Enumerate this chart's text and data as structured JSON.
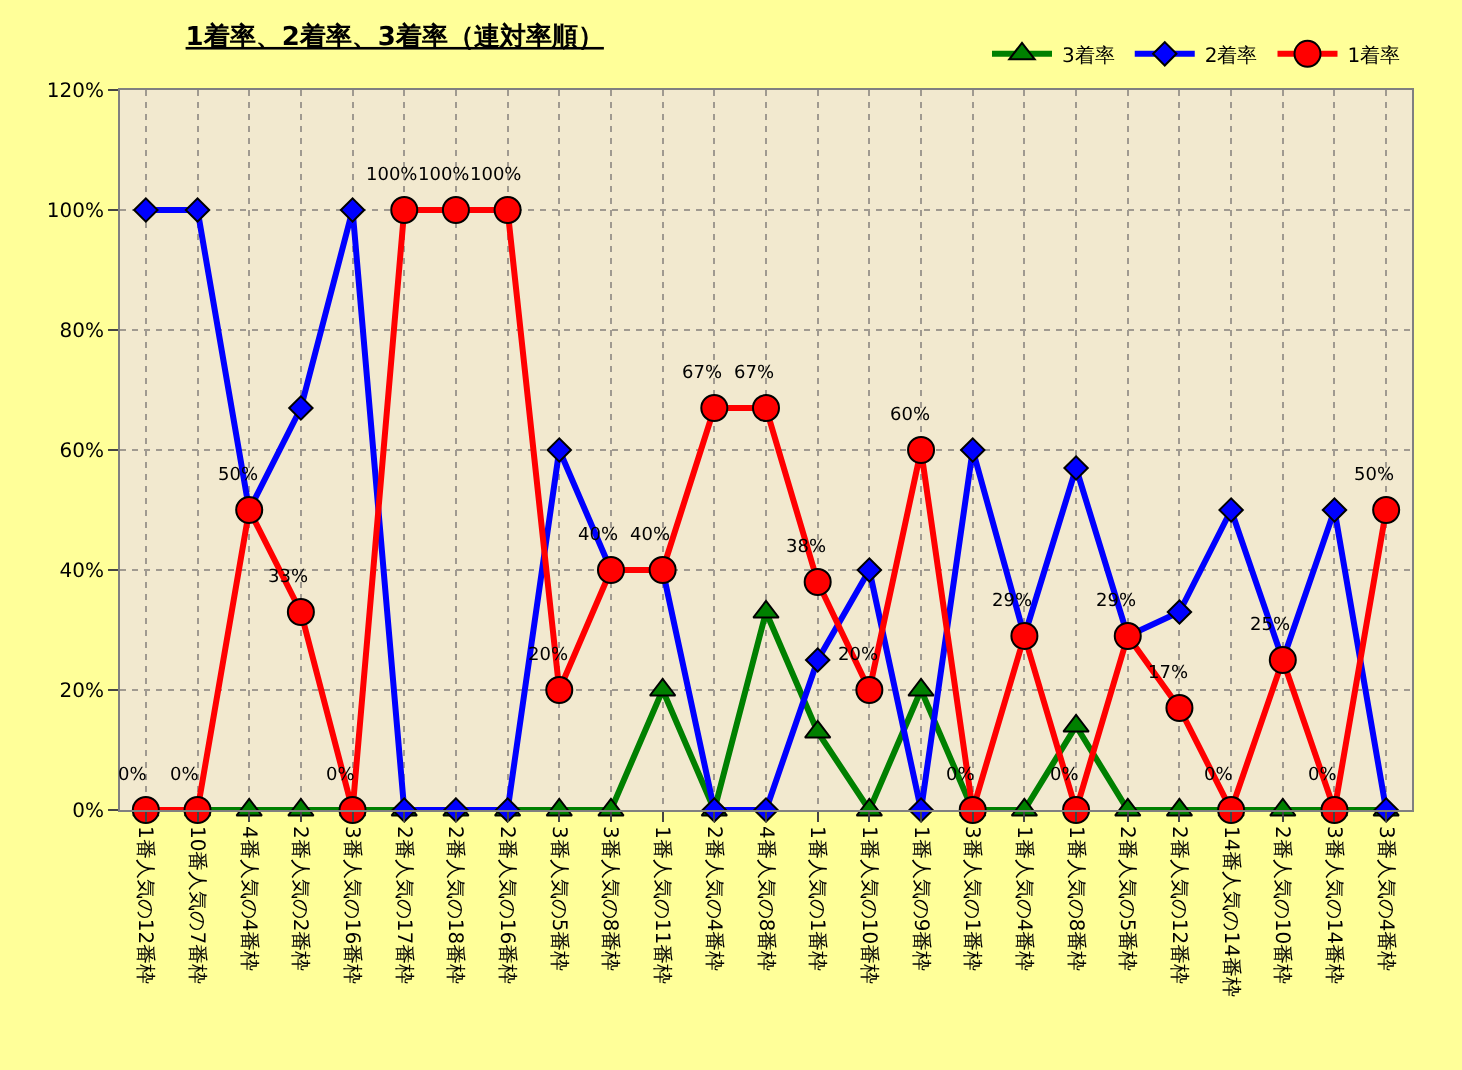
{
  "chart_data": {
    "type": "line",
    "title": "1着率、2着率、3着率（連対率順）",
    "categories": [
      "1番人気の12番枠",
      "10番人気の7番枠",
      "4番人気の4番枠",
      "2番人気の2番枠",
      "3番人気の16番枠",
      "2番人気の17番枠",
      "2番人気の18番枠",
      "2番人気の16番枠",
      "3番人気の5番枠",
      "3番人気の8番枠",
      "1番人気の11番枠",
      "2番人気の4番枠",
      "4番人気の8番枠",
      "1番人気の1番枠",
      "1番人気の10番枠",
      "1番人気の9番枠",
      "3番人気の1番枠",
      "1番人気の4番枠",
      "1番人気の8番枠",
      "2番人気の5番枠",
      "2番人気の12番枠",
      "14番人気の14番枠",
      "2番人気の10番枠",
      "3番人気の14番枠",
      "3番人気の4番枠"
    ],
    "series": [
      {
        "name": "3着率",
        "color": "#008000",
        "marker": "triangle",
        "values": [
          0,
          0,
          0,
          0,
          0,
          0,
          0,
          0,
          0,
          0,
          20,
          0,
          33,
          13,
          0,
          20,
          0,
          0,
          14,
          0,
          0,
          0,
          0,
          0,
          0
        ]
      },
      {
        "name": "2着率",
        "color": "#0000ff",
        "marker": "diamond",
        "values": [
          100,
          100,
          50,
          67,
          100,
          0,
          0,
          0,
          60,
          40,
          40,
          0,
          0,
          25,
          40,
          0,
          60,
          29,
          57,
          29,
          33,
          50,
          25,
          50,
          0
        ]
      },
      {
        "name": "1着率",
        "color": "#ff0000",
        "marker": "circle",
        "values": [
          0,
          0,
          50,
          33,
          0,
          100,
          100,
          100,
          20,
          40,
          40,
          67,
          67,
          38,
          20,
          60,
          0,
          29,
          0,
          29,
          17,
          0,
          25,
          0,
          50
        ],
        "value_labels": [
          "0%",
          "0%",
          "50%",
          "33%",
          "0%",
          "100%",
          "100%",
          "100%",
          "20%",
          "40%",
          "40%",
          "67%",
          "67%",
          "38%",
          "20%",
          "60%",
          "0%",
          "29%",
          "0%",
          "29%",
          "17%",
          "0%",
          "25%",
          "0%",
          "50%"
        ]
      }
    ],
    "ylim": [
      0,
      120
    ],
    "yticks": [
      {
        "value": 0,
        "label": "0%"
      },
      {
        "value": 20,
        "label": "20%"
      },
      {
        "value": 40,
        "label": "40%"
      },
      {
        "value": 60,
        "label": "60%"
      },
      {
        "value": 80,
        "label": "80%"
      },
      {
        "value": 100,
        "label": "100%"
      },
      {
        "value": 120,
        "label": "120%"
      }
    ],
    "grid": true,
    "legend": "top right",
    "line_style": "solid"
  }
}
